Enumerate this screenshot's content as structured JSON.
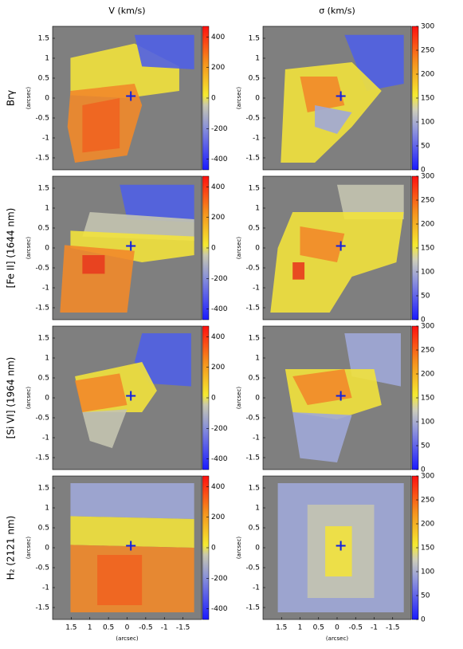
{
  "chart_data": [
    {
      "type": "heatmap",
      "title": "V (km/s)",
      "row_label": "Brγ",
      "ylabel": "(arcsec)",
      "xlim": [
        2,
        -2
      ],
      "ylim": [
        -1.8,
        1.8
      ],
      "yticks": [
        1.5,
        1,
        0.5,
        0,
        -0.5,
        -1,
        -1.5
      ],
      "colorbar": {
        "lim": [
          -470,
          470
        ],
        "ticks": [
          400,
          200,
          0,
          -200,
          -400
        ],
        "scale": "velocity"
      },
      "marker": {
        "x": -0.1,
        "y": 0.05
      }
    },
    {
      "type": "heatmap",
      "title": "σ (km/s)",
      "ylabel": "(arcsec)",
      "xlim": [
        2,
        -2
      ],
      "ylim": [
        -1.8,
        1.8
      ],
      "yticks": [
        1.5,
        1,
        0.5,
        0,
        -0.5,
        -1,
        -1.5
      ],
      "colorbar": {
        "lim": [
          0,
          300
        ],
        "ticks": [
          300,
          250,
          200,
          150,
          100,
          50,
          0
        ],
        "scale": "dispersion"
      },
      "marker": {
        "x": -0.1,
        "y": 0.05
      }
    },
    {
      "type": "heatmap",
      "row_label": "[Fe II] (1644 nm)",
      "ylabel": "(arcsec)",
      "xlim": [
        2,
        -2
      ],
      "ylim": [
        -1.8,
        1.8
      ],
      "yticks": [
        1.5,
        1,
        0.5,
        0,
        -0.5,
        -1,
        -1.5
      ],
      "colorbar": {
        "lim": [
          -470,
          470
        ],
        "ticks": [
          400,
          200,
          0,
          -200,
          -400
        ],
        "scale": "velocity"
      },
      "marker": {
        "x": -0.1,
        "y": 0.05
      }
    },
    {
      "type": "heatmap",
      "ylabel": "(arcsec)",
      "xlim": [
        2,
        -2
      ],
      "ylim": [
        -1.8,
        1.8
      ],
      "yticks": [
        1.5,
        1,
        0.5,
        0,
        -0.5,
        -1,
        -1.5
      ],
      "colorbar": {
        "lim": [
          0,
          300
        ],
        "ticks": [
          300,
          250,
          200,
          150,
          100,
          50,
          0
        ],
        "scale": "dispersion"
      },
      "marker": {
        "x": -0.1,
        "y": 0.05
      }
    },
    {
      "type": "heatmap",
      "row_label": "[Si VI] (1964 nm)",
      "ylabel": "(arcsec)",
      "xlim": [
        2,
        -2
      ],
      "ylim": [
        -1.8,
        1.8
      ],
      "yticks": [
        1.5,
        1,
        0.5,
        0,
        -0.5,
        -1,
        -1.5
      ],
      "colorbar": {
        "lim": [
          -470,
          470
        ],
        "ticks": [
          400,
          200,
          0,
          -200,
          -400
        ],
        "scale": "velocity"
      },
      "marker": {
        "x": -0.1,
        "y": 0.05
      }
    },
    {
      "type": "heatmap",
      "ylabel": "(arcsec)",
      "xlim": [
        2,
        -2
      ],
      "ylim": [
        -1.8,
        1.8
      ],
      "yticks": [
        1.5,
        1,
        0.5,
        0,
        -0.5,
        -1,
        -1.5
      ],
      "colorbar": {
        "lim": [
          0,
          300
        ],
        "ticks": [
          300,
          250,
          200,
          150,
          100,
          50,
          0
        ],
        "scale": "dispersion"
      },
      "marker": {
        "x": -0.1,
        "y": 0.05
      }
    },
    {
      "type": "heatmap",
      "row_label": "H₂ (2121 nm)",
      "ylabel": "(arcsec)",
      "xlabel": "(arcsec)",
      "xlim": [
        2,
        -2
      ],
      "ylim": [
        -1.8,
        1.8
      ],
      "xticks": [
        1.5,
        1,
        0.5,
        0,
        -0.5,
        -1,
        -1.5
      ],
      "yticks": [
        1.5,
        1,
        0.5,
        0,
        -0.5,
        -1,
        -1.5
      ],
      "colorbar": {
        "lim": [
          -470,
          470
        ],
        "ticks": [
          400,
          200,
          0,
          -200,
          -400
        ],
        "scale": "velocity"
      },
      "marker": {
        "x": -0.1,
        "y": 0.05
      }
    },
    {
      "type": "heatmap",
      "ylabel": "(arcsec)",
      "xlabel": "(arcsec)",
      "xlim": [
        2,
        -2
      ],
      "ylim": [
        -1.8,
        1.8
      ],
      "xticks": [
        1.5,
        1,
        0.5,
        0,
        -0.5,
        -1,
        -1.5
      ],
      "yticks": [
        1.5,
        1,
        0.5,
        0,
        -0.5,
        -1,
        -1.5
      ],
      "colorbar": {
        "lim": [
          0,
          300
        ],
        "ticks": [
          300,
          250,
          200,
          150,
          100,
          50,
          0
        ],
        "scale": "dispersion"
      },
      "marker": {
        "x": -0.1,
        "y": 0.05
      }
    }
  ]
}
